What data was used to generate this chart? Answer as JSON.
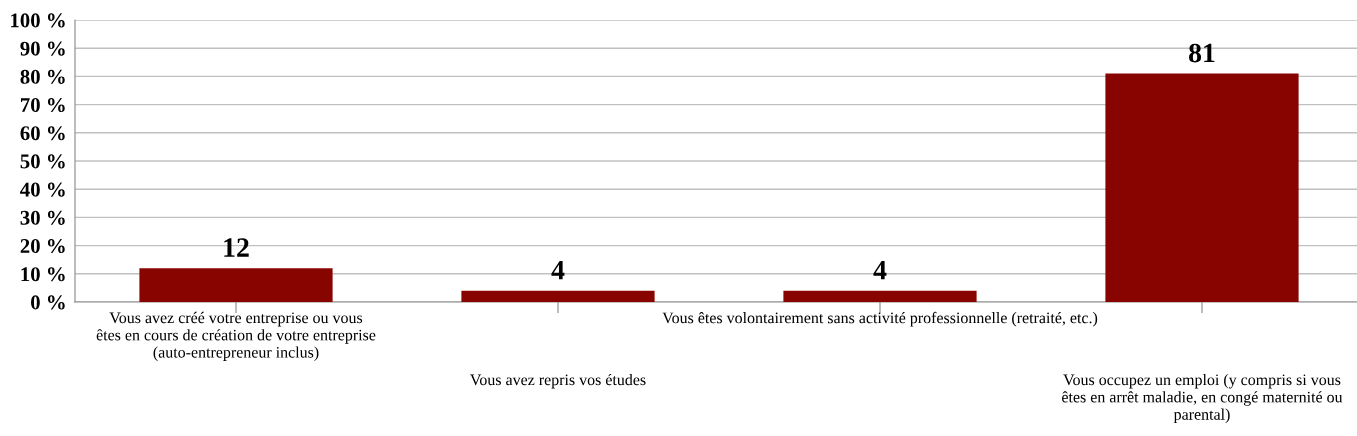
{
  "chart_data": {
    "type": "bar",
    "categories": [
      "Vous avez créé votre entreprise ou vous\nêtes en cours de création de votre entreprise\n(auto-entrepreneur inclus)",
      "Vous avez repris vos études",
      "Vous êtes volontairement sans activité professionnelle (retraité, etc.)",
      "Vous occupez un emploi (y compris si vous\nêtes en arrêt maladie, en congé maternité ou\nparental)"
    ],
    "values": [
      12,
      4,
      4,
      81
    ],
    "color": "#880400",
    "ylim": [
      0,
      100
    ],
    "yticks": [
      {
        "value": 0,
        "label": "0 %"
      },
      {
        "value": 10,
        "label": "10 %"
      },
      {
        "value": 20,
        "label": "20 %"
      },
      {
        "value": 30,
        "label": "30 %"
      },
      {
        "value": 40,
        "label": "40 %"
      },
      {
        "value": 50,
        "label": "50 %"
      },
      {
        "value": 60,
        "label": "60 %"
      },
      {
        "value": 70,
        "label": "70 %"
      },
      {
        "value": 80,
        "label": "80 %"
      },
      {
        "value": 90,
        "label": "90 %"
      },
      {
        "value": 100,
        "label": "100 %"
      }
    ],
    "grid": "y",
    "data_labels": true,
    "legend": false
  }
}
